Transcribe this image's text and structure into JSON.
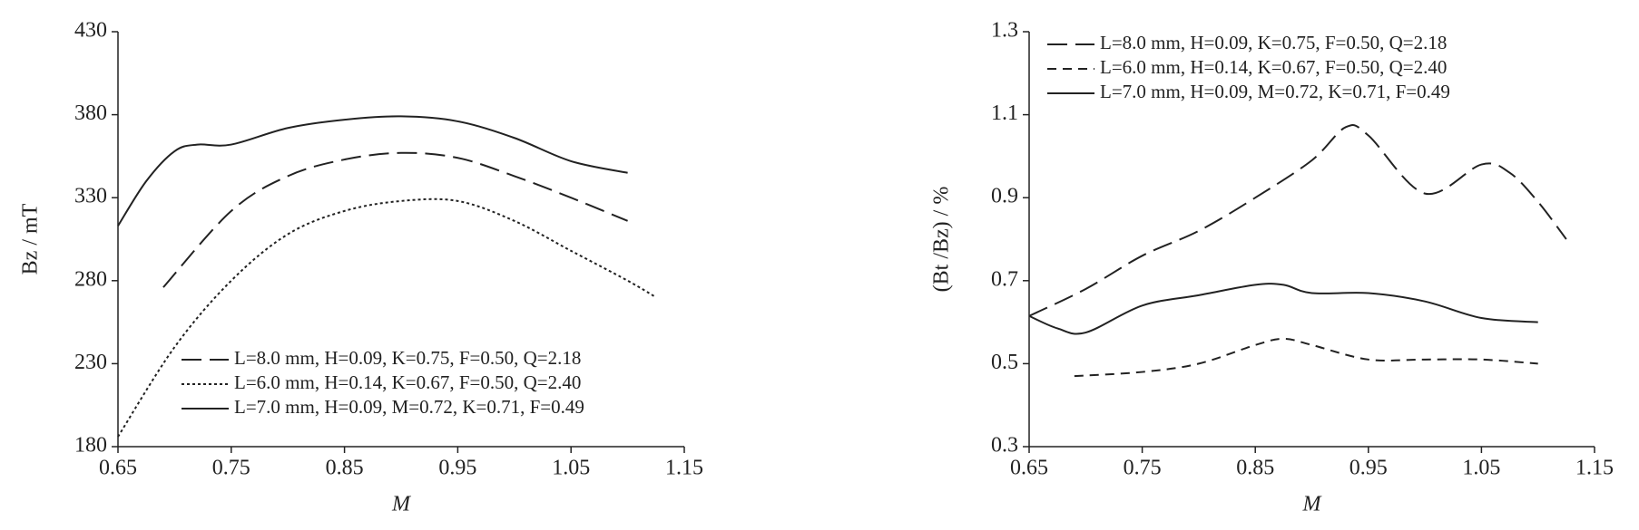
{
  "chart_data": [
    {
      "type": "line",
      "xlabel": "M",
      "ylabel": "Bz / mT",
      "xlim": [
        0.65,
        1.15
      ],
      "xticks": [
        0.65,
        0.75,
        0.85,
        0.95,
        1.05,
        1.15
      ],
      "ylim": [
        180,
        430
      ],
      "yticks": [
        180,
        230,
        280,
        330,
        380,
        430
      ],
      "legend": "lower-right",
      "series": [
        {
          "name": "L=8.0 mm, H=0.09, K=0.75, F=0.50, Q=2.18",
          "color": "#222222",
          "style": "long-dash",
          "x": [
            0.69,
            0.75,
            0.8,
            0.85,
            0.9,
            0.95,
            1.0,
            1.05,
            1.1
          ],
          "values": [
            276,
            322,
            343,
            353,
            357,
            354,
            343,
            330,
            316
          ]
        },
        {
          "name": "L=6.0 mm, H=0.14, K=0.67, F=0.50, Q=2.40",
          "color": "#222222",
          "style": "dotted",
          "x": [
            0.65,
            0.7,
            0.75,
            0.8,
            0.85,
            0.9,
            0.95,
            1.0,
            1.05,
            1.1,
            1.125
          ],
          "values": [
            186,
            240,
            280,
            308,
            322,
            328,
            328,
            316,
            298,
            280,
            270
          ]
        },
        {
          "name": "L=7.0 mm, H=0.09, M=0.72, K=0.71, F=0.49",
          "color": "#222222",
          "style": "solid",
          "x": [
            0.65,
            0.675,
            0.7,
            0.72,
            0.75,
            0.8,
            0.85,
            0.9,
            0.95,
            1.0,
            1.05,
            1.1
          ],
          "values": [
            313,
            340,
            358,
            362,
            362,
            372,
            377,
            379,
            376,
            366,
            352,
            345
          ]
        }
      ]
    },
    {
      "type": "line",
      "xlabel": "M",
      "ylabel": "(Bt /Bz) / %",
      "xlim": [
        0.65,
        1.15
      ],
      "xticks": [
        0.65,
        0.75,
        0.85,
        0.95,
        1.05,
        1.15
      ],
      "ylim": [
        0.3,
        1.3
      ],
      "yticks": [
        0.3,
        0.5,
        0.7,
        0.9,
        1.1,
        1.3
      ],
      "legend": "upper-left",
      "series": [
        {
          "name": "L=8.0 mm, H=0.09, K=0.75, F=0.50, Q=2.18",
          "color": "#222222",
          "style": "long-dash",
          "x": [
            0.65,
            0.7,
            0.75,
            0.8,
            0.85,
            0.9,
            0.93,
            0.95,
            1.0,
            1.05,
            1.075,
            1.1,
            1.125
          ],
          "values": [
            0.615,
            0.68,
            0.76,
            0.82,
            0.9,
            0.99,
            1.07,
            1.05,
            0.91,
            0.98,
            0.96,
            0.89,
            0.8
          ]
        },
        {
          "name": "L=6.0 mm, H=0.14, K=0.67, F=0.50, Q=2.40",
          "color": "#222222",
          "style": "short-dash",
          "x": [
            0.69,
            0.75,
            0.8,
            0.85,
            0.875,
            0.9,
            0.95,
            1.0,
            1.05,
            1.1
          ],
          "values": [
            0.47,
            0.48,
            0.5,
            0.545,
            0.56,
            0.545,
            0.51,
            0.51,
            0.51,
            0.5
          ]
        },
        {
          "name": "L=7.0 mm, H=0.09, M=0.72, K=0.71, F=0.49",
          "color": "#222222",
          "style": "solid",
          "x": [
            0.65,
            0.675,
            0.7,
            0.75,
            0.8,
            0.85,
            0.875,
            0.9,
            0.95,
            1.0,
            1.05,
            1.1
          ],
          "values": [
            0.615,
            0.585,
            0.575,
            0.64,
            0.665,
            0.69,
            0.69,
            0.67,
            0.67,
            0.65,
            0.61,
            0.6
          ]
        }
      ]
    }
  ]
}
